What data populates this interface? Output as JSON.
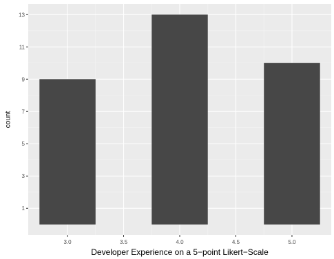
{
  "chart_data": {
    "type": "bar",
    "categories": [
      3.0,
      4.0,
      5.0
    ],
    "values": [
      9,
      13,
      10
    ],
    "bar_width": 0.5,
    "xlabel": "Developer Experience on a 5−point Likert−Scale",
    "ylabel": "count",
    "xlim": [
      2.65,
      5.35
    ],
    "ylim": [
      -0.65,
      13.65
    ],
    "x_ticks": [
      3.0,
      3.5,
      4.0,
      4.5,
      5.0
    ],
    "x_tick_labels": [
      "3.0",
      "3.5",
      "4.0",
      "4.5",
      "5.0"
    ],
    "y_ticks": [
      1,
      3,
      5,
      7,
      9,
      11,
      13
    ],
    "y_tick_labels": [
      "1",
      "3",
      "5",
      "7",
      "9",
      "11",
      "13"
    ],
    "grid": true,
    "colors": {
      "panel_background": "#ebebeb",
      "grid_major": "#ffffff",
      "grid_minor": "#f5f5f5",
      "bar_fill": "#474747",
      "tick_mark": "#333333"
    }
  }
}
